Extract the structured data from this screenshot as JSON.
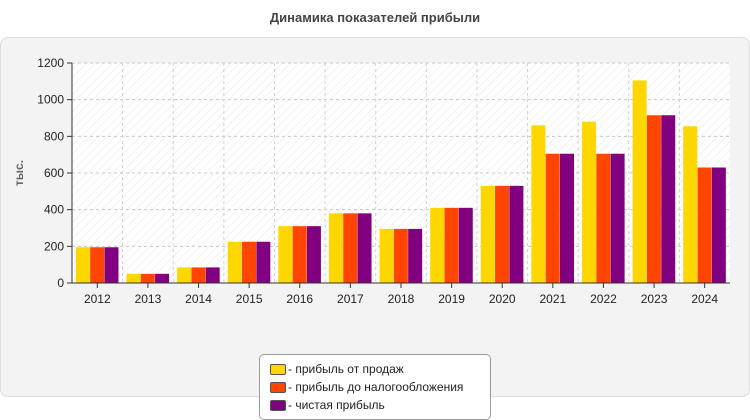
{
  "chart_data": {
    "type": "bar",
    "title": "Динамика показателей прибыли",
    "ylabel": "тыс.",
    "xlabel": "",
    "ylim": [
      0,
      1200
    ],
    "yticks": [
      0,
      200,
      400,
      600,
      800,
      1000,
      1200
    ],
    "grid": true,
    "legend_position": "bottom",
    "categories": [
      "2012",
      "2013",
      "2014",
      "2015",
      "2016",
      "2017",
      "2018",
      "2019",
      "2020",
      "2021",
      "2022",
      "2023",
      "2024"
    ],
    "series": [
      {
        "name": "прибыль от продаж",
        "color": "#FFD700",
        "values": [
          195,
          50,
          85,
          225,
          310,
          380,
          295,
          410,
          530,
          860,
          880,
          1105,
          855
        ]
      },
      {
        "name": "прибыль до налогообложения",
        "color": "#FF4500",
        "values": [
          195,
          50,
          85,
          225,
          310,
          380,
          295,
          410,
          530,
          705,
          705,
          915,
          630
        ]
      },
      {
        "name": "чистая прибыль",
        "color": "#800080",
        "values": [
          195,
          50,
          85,
          225,
          310,
          380,
          295,
          410,
          530,
          705,
          705,
          915,
          630
        ]
      }
    ]
  },
  "legend": [
    {
      "label": "- прибыль от продаж",
      "color": "#FFD700"
    },
    {
      "label": "- прибыль до налогообложения",
      "color": "#FF4500"
    },
    {
      "label": "- чистая прибыль",
      "color": "#800080"
    }
  ]
}
